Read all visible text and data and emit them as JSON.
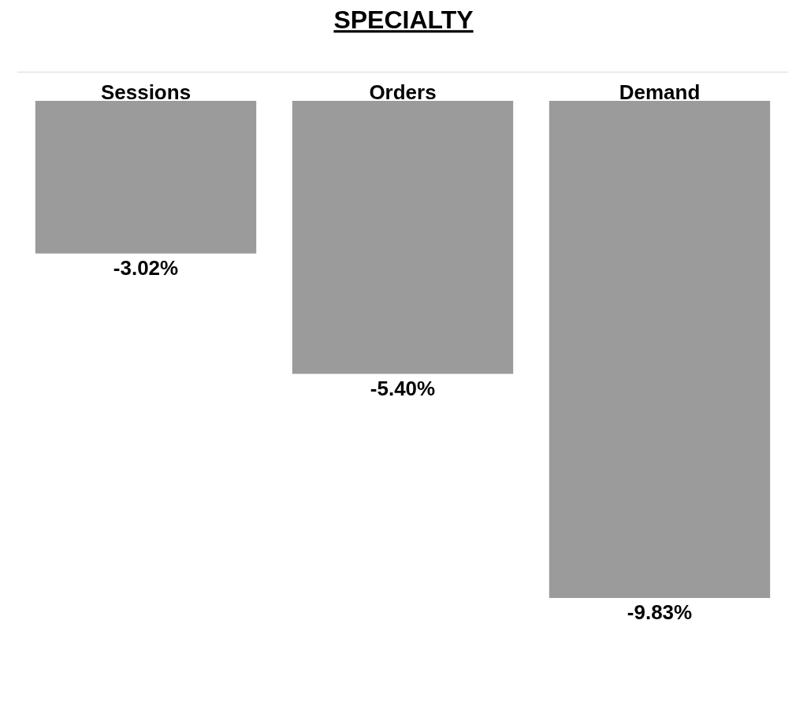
{
  "chart_data": {
    "type": "bar",
    "title": "SPECIALTY",
    "categories": [
      "Sessions",
      "Orders",
      "Demand"
    ],
    "values": [
      -3.02,
      -5.4,
      -9.83
    ],
    "value_labels": [
      "-3.02%",
      "-5.40%",
      "-9.83%"
    ],
    "color": "#9b9b9b",
    "tick_labels": "x",
    "legend": false
  }
}
